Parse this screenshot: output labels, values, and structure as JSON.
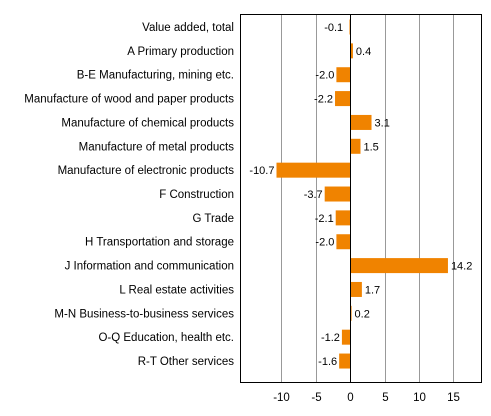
{
  "chart_data": {
    "type": "bar",
    "orientation": "horizontal",
    "title": "",
    "xlabel": "",
    "ylabel": "",
    "categories": [
      "Value added, total",
      "A Primary production",
      "B-E Manufacturing, mining etc.",
      "Manufacture of wood and paper products",
      "Manufacture of chemical products",
      "Manufacture of metal products",
      "Manufacture of electronic products",
      "F Construction",
      "G Trade",
      "H Transportation and storage",
      "J Information and communication",
      "L Real estate activities",
      "M-N Business-to-business services",
      "O-Q Education, health etc.",
      "R-T Other services"
    ],
    "values": [
      -0.1,
      0.4,
      -2.0,
      -2.2,
      3.1,
      1.5,
      -10.7,
      -3.7,
      -2.1,
      -2.0,
      14.2,
      1.7,
      0.2,
      -1.2,
      -1.6
    ],
    "value_labels": [
      "-0.1",
      "0.4",
      "-2.0",
      "-2.2",
      "3.1",
      "1.5",
      "-10.7",
      "-3.7",
      "-2.1",
      "-2.0",
      "14.2",
      "1.7",
      "0.2",
      "-1.2",
      "-1.6"
    ],
    "xlim": [
      -16,
      19
    ],
    "xticks": [
      -10,
      -5,
      0,
      5,
      10,
      15
    ],
    "xtick_labels": [
      "-10",
      "-5",
      "0",
      "5",
      "10",
      "15"
    ],
    "grid": true,
    "legend": "none",
    "bar_color": "#f08300"
  }
}
